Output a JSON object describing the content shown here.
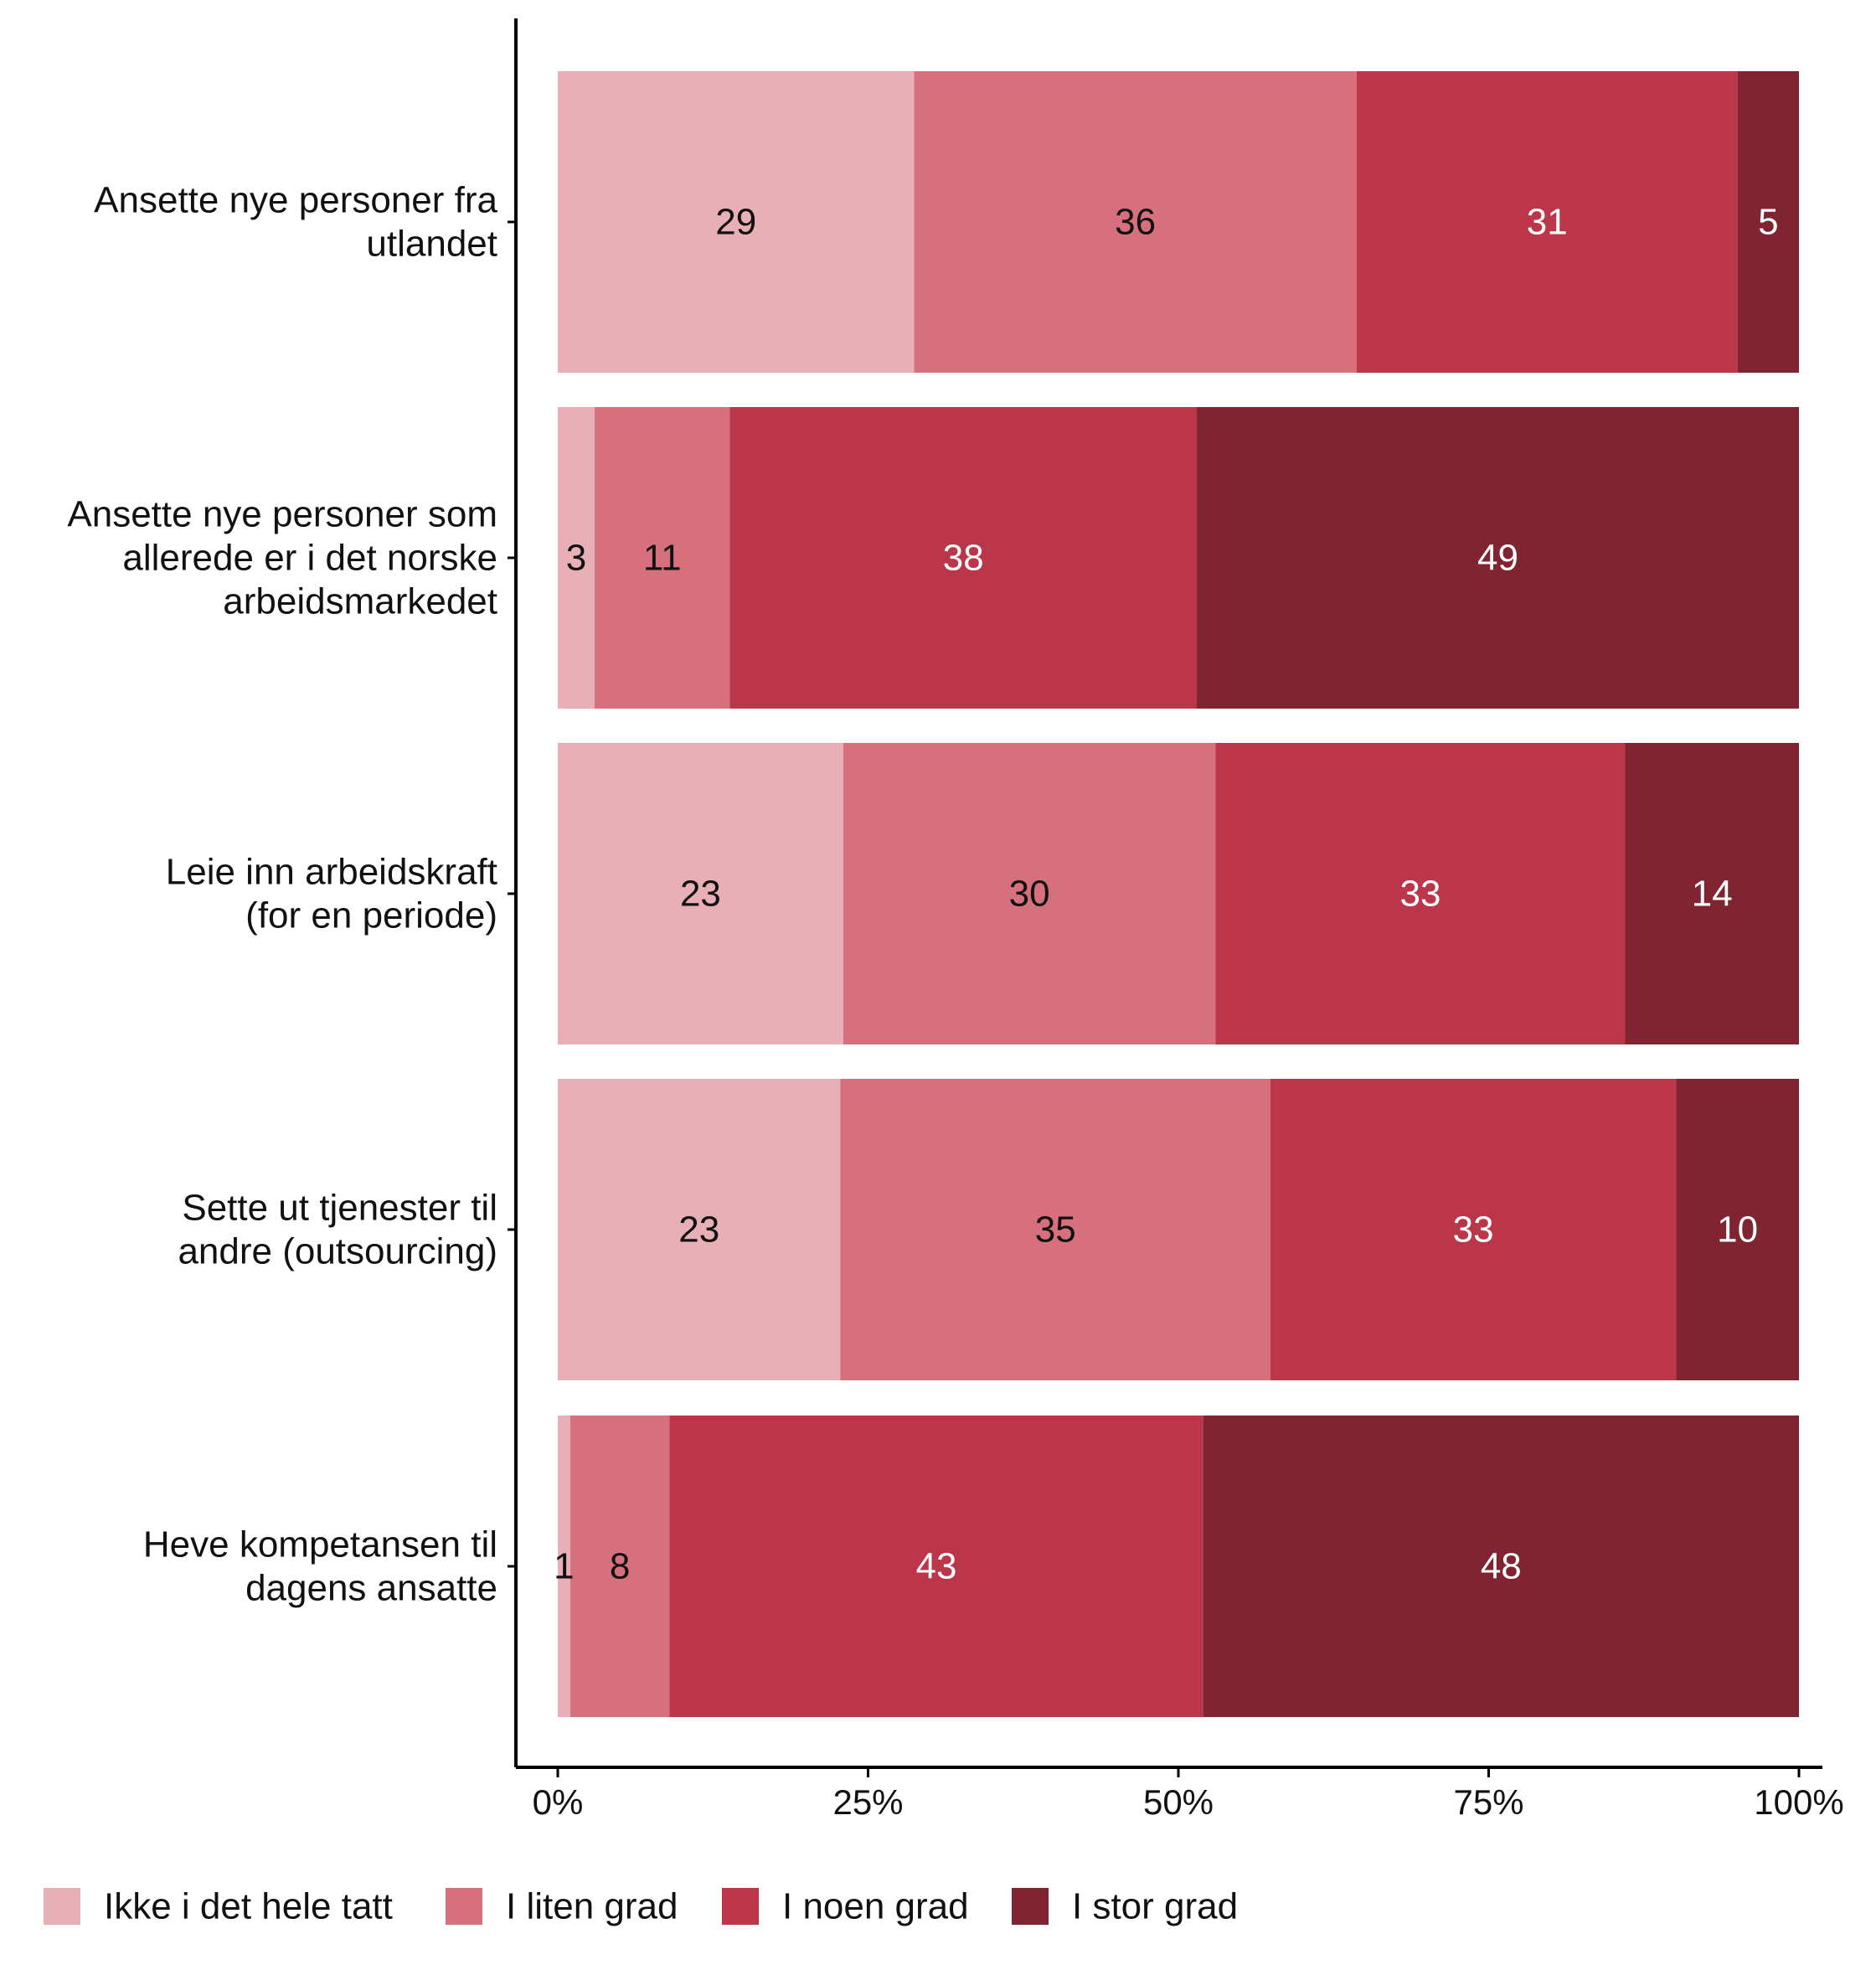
{
  "chart_data": {
    "type": "bar",
    "orientation": "horizontal",
    "stacked": true,
    "categories": [
      [
        "Ansette nye personer fra",
        "utlandet"
      ],
      [
        "Ansette nye personer som",
        "allerede er i det norske",
        "arbeidsmarkedet"
      ],
      [
        "Leie inn arbeidskraft",
        "(for en periode)"
      ],
      [
        "Sette ut tjenester til",
        "andre (outsourcing)"
      ],
      [
        "Heve kompetansen til",
        "dagens ansatte"
      ]
    ],
    "series": [
      {
        "name": "Ikke i det hele tatt",
        "color": "#e8b0b6",
        "label_color": "#111111",
        "values": [
          29,
          3,
          23,
          23,
          1
        ]
      },
      {
        "name": "I liten grad",
        "color": "#d6707c",
        "label_color": "#111111",
        "values": [
          36,
          11,
          30,
          35,
          8
        ]
      },
      {
        "name": "I noen grad",
        "color": "#bb3649",
        "label_color": "#ffffff",
        "values": [
          31,
          38,
          33,
          33,
          43
        ]
      },
      {
        "name": "I stor grad",
        "color": "#7f2430",
        "label_color": "#ffffff",
        "values": [
          5,
          49,
          14,
          10,
          48
        ]
      }
    ],
    "xlim": [
      0,
      100
    ],
    "xticks": [
      "0%",
      "25%",
      "50%",
      "75%",
      "100%"
    ],
    "xlabel": "",
    "ylabel": "",
    "title": "",
    "grid": false,
    "legend_position": "bottom"
  }
}
